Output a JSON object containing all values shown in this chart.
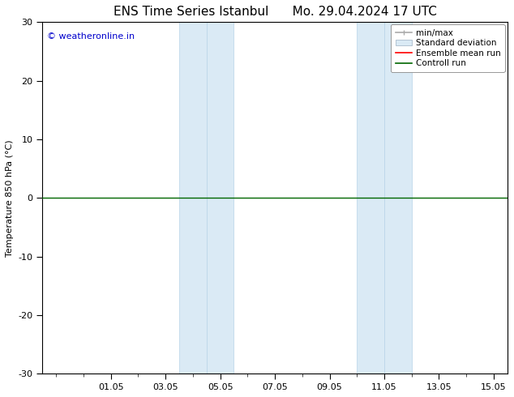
{
  "title_left": "ENS Time Series Istanbul",
  "title_right": "Mo. 29.04.2024 17 UTC",
  "ylabel": "Temperature 850 hPa (°C)",
  "ylim": [
    -30,
    30
  ],
  "yticks": [
    -30,
    -20,
    -10,
    0,
    10,
    20,
    30
  ],
  "xtick_labels": [
    "01.05",
    "03.05",
    "05.05",
    "07.05",
    "09.05",
    "11.05",
    "13.05",
    "15.05"
  ],
  "xtick_positions": [
    2,
    4,
    6,
    8,
    10,
    12,
    14,
    16
  ],
  "shaded_bands": [
    {
      "x_start": 4.5,
      "x_end": 5.5,
      "color": "#daeaf5"
    },
    {
      "x_start": 5.5,
      "x_end": 6.5,
      "color": "#daeaf5"
    },
    {
      "x_start": 11.0,
      "x_end": 12.0,
      "color": "#daeaf5"
    },
    {
      "x_start": 12.0,
      "x_end": 13.0,
      "color": "#daeaf5"
    }
  ],
  "watermark_text": "© weatheronline.in",
  "watermark_color": "#0000cc",
  "background_color": "#ffffff",
  "plot_bg_color": "#ffffff",
  "legend_labels": [
    "min/max",
    "Standard deviation",
    "Ensemble mean run",
    "Controll run"
  ],
  "legend_colors": [
    "#aaaaaa",
    "#daeaf5",
    "#ff0000",
    "#006600"
  ],
  "control_run_color": "#006600",
  "ensemble_mean_color": "#ff0000",
  "zero_line_color": "#000000",
  "font_size_title": 11,
  "font_size_axis": 8,
  "font_size_legend": 7.5,
  "font_size_watermark": 8,
  "x_min": -0.5,
  "x_max": 16.5
}
